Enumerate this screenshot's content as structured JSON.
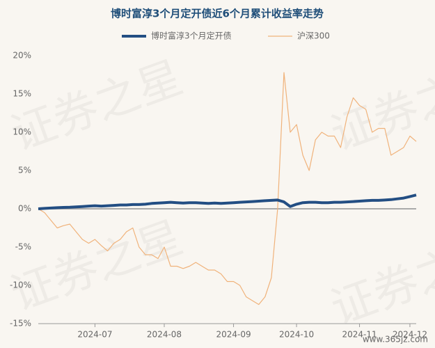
{
  "chart_data": {
    "type": "line",
    "title": "博时富淳3个月定开债近6个月累计收益率走势",
    "watermark": "证券之星",
    "site": "www.365jz.com",
    "categories": [
      null,
      null,
      null,
      null,
      null,
      null,
      null,
      null,
      null,
      "2024-07",
      null,
      null,
      null,
      null,
      null,
      null,
      null,
      null,
      null,
      null,
      "2024-08",
      null,
      null,
      null,
      null,
      null,
      null,
      null,
      null,
      null,
      null,
      "2024-09",
      null,
      null,
      null,
      null,
      null,
      null,
      null,
      null,
      null,
      "2024-10",
      null,
      null,
      null,
      null,
      null,
      null,
      null,
      null,
      null,
      "2024-11",
      null,
      null,
      null,
      null,
      null,
      null,
      null,
      "2024-12",
      null
    ],
    "series": [
      {
        "name": "博时富淳3个月定开债",
        "color": "#234e83",
        "width": 4,
        "values": [
          0,
          0.05,
          0.1,
          0.15,
          0.18,
          0.2,
          0.25,
          0.3,
          0.35,
          0.4,
          0.35,
          0.4,
          0.45,
          0.5,
          0.5,
          0.55,
          0.55,
          0.6,
          0.7,
          0.75,
          0.8,
          0.85,
          0.8,
          0.75,
          0.8,
          0.8,
          0.75,
          0.7,
          0.75,
          0.7,
          0.75,
          0.8,
          0.85,
          0.9,
          0.95,
          1.0,
          1.05,
          1.1,
          1.15,
          0.9,
          0.3,
          0.6,
          0.8,
          0.85,
          0.85,
          0.8,
          0.8,
          0.85,
          0.85,
          0.9,
          0.95,
          1.0,
          1.05,
          1.1,
          1.1,
          1.15,
          1.2,
          1.3,
          1.4,
          1.6,
          1.8
        ]
      },
      {
        "name": "沪深300",
        "color": "#f0b27a",
        "width": 1.2,
        "values": [
          0,
          -0.5,
          -1.5,
          -2.5,
          -2.2,
          -2.0,
          -3.0,
          -4.0,
          -4.5,
          -4.0,
          -4.8,
          -5.5,
          -4.5,
          -4.0,
          -3.0,
          -2.5,
          -5.0,
          -6.0,
          -6.0,
          -6.5,
          -5.0,
          -7.5,
          -7.5,
          -7.8,
          -7.5,
          -7.0,
          -7.5,
          -8.0,
          -8.0,
          -8.5,
          -9.5,
          -9.5,
          -10.0,
          -11.5,
          -12.0,
          -12.5,
          -11.5,
          -9.0,
          0,
          17.8,
          10.0,
          11.0,
          7.0,
          5.0,
          9.0,
          10.0,
          9.5,
          9.5,
          8.0,
          12.0,
          14.5,
          13.5,
          13.0,
          10.0,
          10.5,
          10.5,
          7.0,
          7.5,
          8.0,
          9.5,
          8.8
        ]
      }
    ],
    "ylim": [
      -15,
      20
    ],
    "yticks": [
      {
        "value": 20,
        "label": "20%"
      },
      {
        "value": 15,
        "label": "15%"
      },
      {
        "value": 10,
        "label": "10%"
      },
      {
        "value": 5,
        "label": "5%"
      },
      {
        "value": 0,
        "label": "0%"
      },
      {
        "value": -5,
        "label": "-5%"
      },
      {
        "value": -10,
        "label": "-10%"
      },
      {
        "value": -15,
        "label": "-15%"
      }
    ],
    "grid": false
  }
}
